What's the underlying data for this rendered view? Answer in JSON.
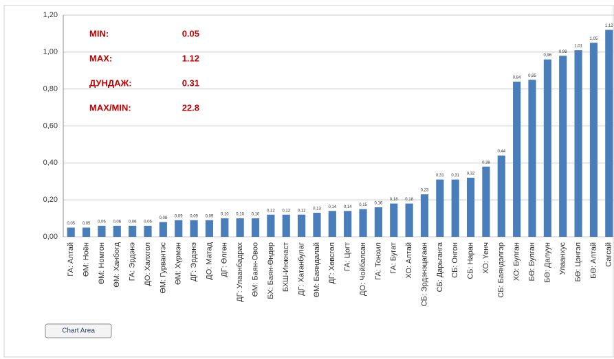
{
  "chart_data": {
    "type": "bar",
    "categories": [
      "ГА: Алтай",
      "ӨМ: Ноён",
      "ӨМ: Номгон",
      "ӨМ: Ханбогд",
      "ГА: Эрдэнэ",
      "ДО: Халхгол",
      "ӨМ: Гурвантэс",
      "ӨМ: Хүрмэн",
      "ДГ: Эрдэнэ",
      "ДО: Матад",
      "ДГ: Өлгөн",
      "ДГ: Улаанбадрах",
      "ӨМ: Баян-Овоо",
      "БХ: Баян-Өндөр",
      "БХШ-Инжнаст",
      "ДГ: Хатанбулаг",
      "ӨМ: Баяндалай",
      "ДГ: Хөвсгөл",
      "ГА: Цогт",
      "ДО: Чойбалсан",
      "ГА: Тонхил",
      "ГА: Бугат",
      "ХО: Алтай",
      "СБ: Эрдэнэцагаан",
      "СБ: Дарьганга",
      "СБ: Онгон",
      "СБ: Наран",
      "ХО: Үенч",
      "СБ: Баяндэлгэр",
      "ХО: Булган",
      "БӨ: Булган",
      "БӨ: Далуун",
      "Улаанхус",
      "БӨ: Цэнгэл",
      "БӨ: Алтай",
      "Сагсай"
    ],
    "values": [
      0.05,
      0.05,
      0.06,
      0.06,
      0.06,
      0.06,
      0.08,
      0.09,
      0.09,
      0.09,
      0.1,
      0.1,
      0.1,
      0.12,
      0.12,
      0.12,
      0.13,
      0.14,
      0.14,
      0.15,
      0.16,
      0.18,
      0.18,
      0.23,
      0.31,
      0.31,
      0.32,
      0.38,
      0.44,
      0.84,
      0.85,
      0.96,
      0.98,
      1.01,
      1.05,
      1.12
    ],
    "value_labels": [
      "0,05",
      "0,05",
      "0,06",
      "0,06",
      "0,06",
      "0,06",
      "0,08",
      "0,09",
      "0,09",
      "0,09",
      "0,10",
      "0,10",
      "0,10",
      "0,12",
      "0,12",
      "0,12",
      "0,13",
      "0,14",
      "0,14",
      "0,15",
      "0,16",
      "0,18",
      "0,18",
      "0,23",
      "0,31",
      "0,31",
      "0,32",
      "0,38",
      "0,44",
      "0,84",
      "0,85",
      "0,96",
      "0,98",
      "1,01",
      "1,05",
      "1,12"
    ],
    "color": "#4a7ebb",
    "ylim": [
      0,
      1.2
    ],
    "yticks": [
      {
        "value": 0,
        "label": "0,00"
      },
      {
        "value": 0.2,
        "label": "0,20"
      },
      {
        "value": 0.4,
        "label": "0,40"
      },
      {
        "value": 0.6,
        "label": "0,60"
      },
      {
        "value": 0.8,
        "label": "0,80"
      },
      {
        "value": 1.0,
        "label": "1,00"
      },
      {
        "value": 1.2,
        "label": "1,20"
      }
    ],
    "grid": true,
    "annotations": [
      {
        "label": "MIN:",
        "value": "0.05"
      },
      {
        "label": "MAX:",
        "value": "1.12"
      },
      {
        "label": "ДУНДАЖ:",
        "value": "0.31"
      },
      {
        "label": "MAX/MIN:",
        "value": "22.8"
      }
    ],
    "tooltip": "Chart Area"
  }
}
